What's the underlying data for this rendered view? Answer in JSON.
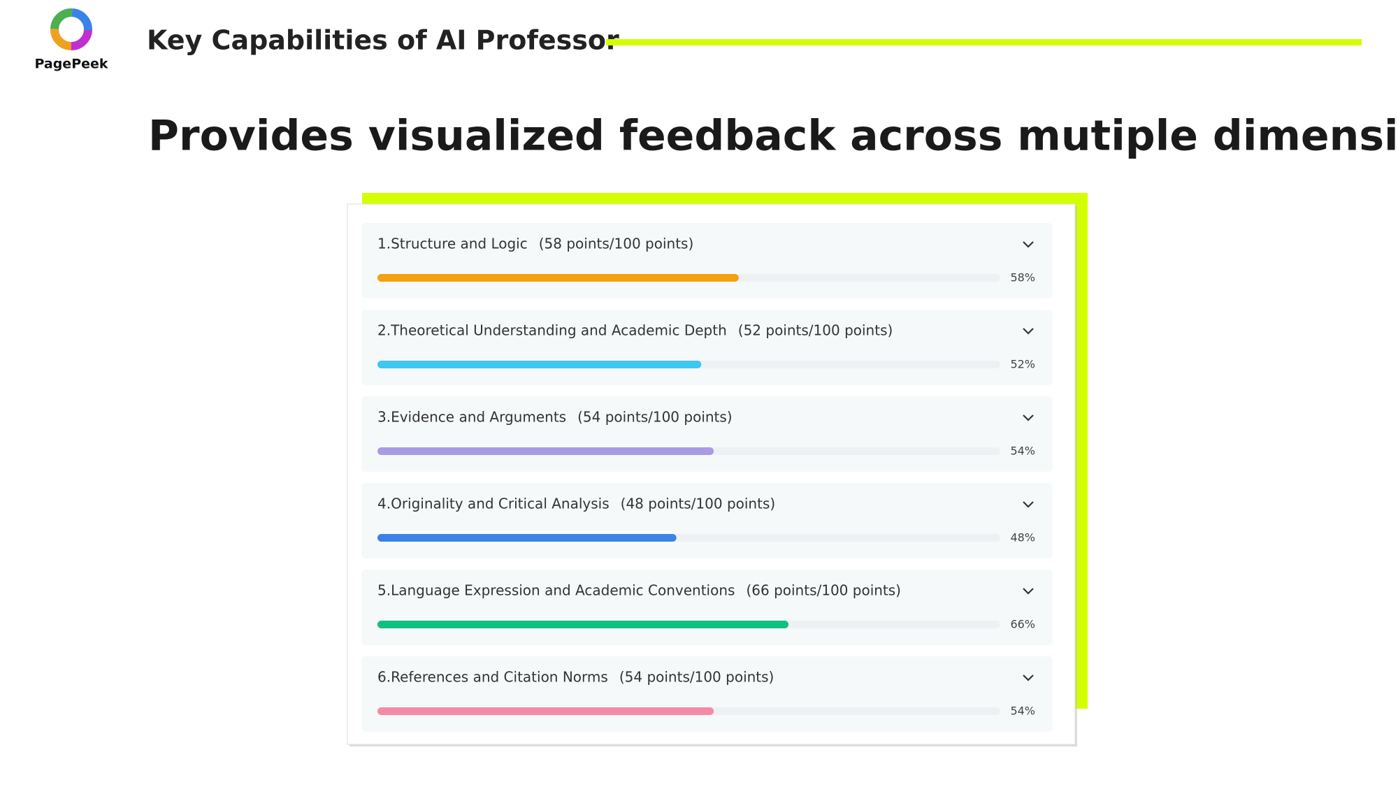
{
  "header": {
    "logo_text": "PagePeek",
    "title": "Key Capabilities of AI Professor"
  },
  "subtitle": "Provides visualized feedback across mutiple dimensions",
  "items": [
    {
      "label": "1.Structure and Logic",
      "score_text": "(58 points/100 points)",
      "value": 58,
      "value_label": "58%",
      "color": "#f5a00f"
    },
    {
      "label": "2.Theoretical Understanding and Academic Depth",
      "score_text": "(52 points/100 points)",
      "value": 52,
      "value_label": "52%",
      "color": "#3ec7f0"
    },
    {
      "label": "3.Evidence and Arguments",
      "score_text": "(54 points/100 points)",
      "value": 54,
      "value_label": "54%",
      "color": "#a99be6"
    },
    {
      "label": "4.Originality and Critical Analysis",
      "score_text": "(48 points/100 points)",
      "value": 48,
      "value_label": "48%",
      "color": "#3b82e8"
    },
    {
      "label": "5.Language Expression and Academic Conventions",
      "score_text": "(66 points/100 points)",
      "value": 66,
      "value_label": "66%",
      "color": "#10c07e"
    },
    {
      "label": "6.References and Citation Norms",
      "score_text": "(54 points/100 points)",
      "value": 54,
      "value_label": "54%",
      "color": "#f48aa6"
    }
  ]
}
